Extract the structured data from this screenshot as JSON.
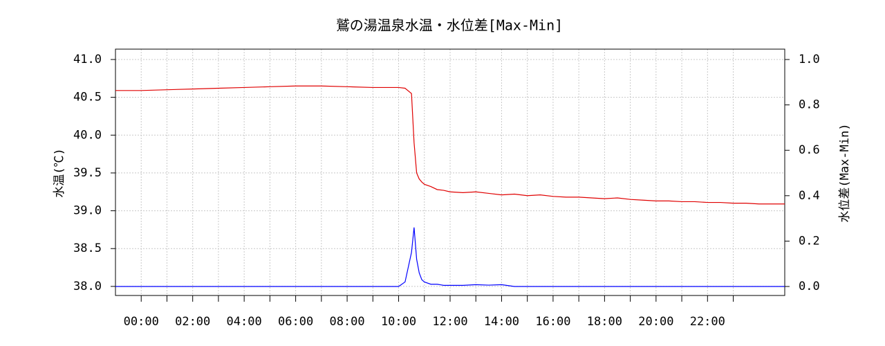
{
  "chart_data": {
    "type": "line",
    "title": "鷲の湯温泉水温・水位差[Max-Min]",
    "y_label": "水温(℃)",
    "y2_label": "水位差(Max-Min)",
    "x": [
      -1,
      0,
      1,
      2,
      3,
      4,
      5,
      6,
      7,
      8,
      9,
      10,
      10.25,
      10.5,
      10.6,
      10.7,
      10.8,
      10.9,
      11,
      11.25,
      11.5,
      11.75,
      12,
      12.5,
      13,
      13.5,
      14,
      14.5,
      15,
      15.5,
      16,
      16.5,
      17,
      17.5,
      18,
      18.5,
      19,
      19.5,
      20,
      20.5,
      21,
      21.5,
      22,
      22.5,
      23,
      23.5,
      24,
      24.5,
      25
    ],
    "series": [
      {
        "name": "水温",
        "color": "#e00000",
        "values": [
          40.59,
          40.59,
          40.6,
          40.61,
          40.62,
          40.63,
          40.64,
          40.65,
          40.65,
          40.64,
          40.63,
          40.63,
          40.62,
          40.55,
          39.9,
          39.5,
          39.42,
          39.38,
          39.35,
          39.32,
          39.28,
          39.27,
          39.25,
          39.24,
          39.25,
          39.23,
          39.21,
          39.22,
          39.2,
          39.21,
          39.19,
          39.18,
          39.18,
          39.17,
          39.16,
          39.17,
          39.15,
          39.14,
          39.13,
          39.13,
          39.12,
          39.12,
          39.11,
          39.11,
          39.1,
          39.1,
          39.09,
          39.09,
          39.09
        ]
      },
      {
        "name": "水位差",
        "color": "#0000ff",
        "axis": "y2",
        "values": [
          0,
          0,
          0,
          0,
          0,
          0,
          0,
          0,
          0,
          0,
          0,
          0,
          0.02,
          0.15,
          0.26,
          0.12,
          0.06,
          0.03,
          0.02,
          0.01,
          0.01,
          0.005,
          0.005,
          0.005,
          0.008,
          0.006,
          0.008,
          0,
          0,
          0,
          0,
          0,
          0,
          0,
          0,
          0,
          0,
          0,
          0,
          0,
          0,
          0,
          0,
          0,
          0,
          0,
          0,
          0,
          0
        ]
      }
    ],
    "xlim": [
      -1,
      25
    ],
    "xticks": [
      {
        "value": 0,
        "label": "00:00"
      },
      {
        "value": 2,
        "label": "02:00"
      },
      {
        "value": 4,
        "label": "04:00"
      },
      {
        "value": 6,
        "label": "06:00"
      },
      {
        "value": 8,
        "label": "08:00"
      },
      {
        "value": 10,
        "label": "10:00"
      },
      {
        "value": 12,
        "label": "12:00"
      },
      {
        "value": 14,
        "label": "14:00"
      },
      {
        "value": 16,
        "label": "16:00"
      },
      {
        "value": 18,
        "label": "18:00"
      },
      {
        "value": 20,
        "label": "20:00"
      },
      {
        "value": 22,
        "label": "22:00"
      }
    ],
    "xminor_ticks": [
      1,
      3,
      5,
      7,
      9,
      11,
      13,
      15,
      17,
      19,
      21,
      23
    ],
    "ylim": [
      37.88,
      41.137
    ],
    "yticks": [
      {
        "value": 38,
        "label": "38.0"
      },
      38.5,
      {
        "value": 39,
        "label": "39.0"
      },
      39.5,
      {
        "value": 40,
        "label": "40.0"
      },
      40.5,
      {
        "value": 41,
        "label": "41.0"
      }
    ],
    "y2lim": [
      -0.0396,
      1.0457
    ],
    "y2ticks": [
      {
        "value": 0,
        "label": "0.0"
      },
      0.2,
      0.4,
      0.6,
      0.8,
      {
        "value": 1,
        "label": "1.0"
      }
    ],
    "grid": true
  }
}
